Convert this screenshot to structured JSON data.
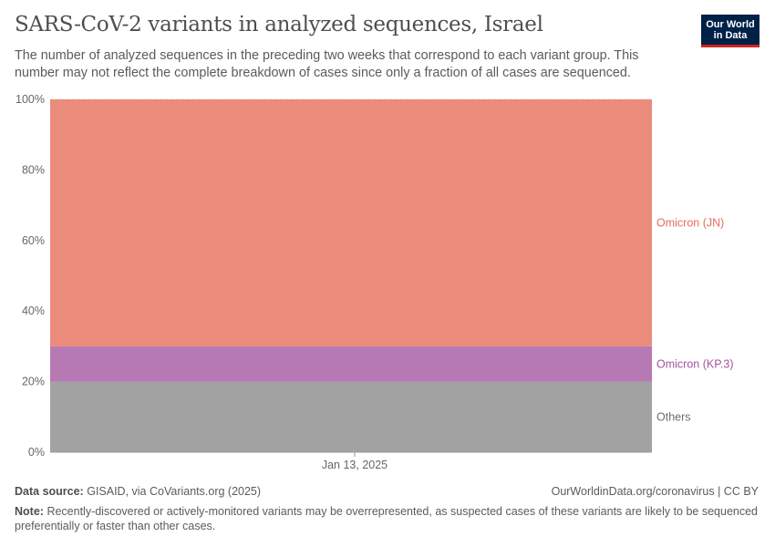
{
  "header": {
    "title": "SARS-CoV-2 variants in analyzed sequences, Israel",
    "subtitle": "The number of analyzed sequences in the preceding two weeks that correspond to each variant group. This number may not reflect the complete breakdown of cases since only a fraction of all cases are sequenced."
  },
  "logo": {
    "line1": "Our World",
    "line2": "in Data"
  },
  "chart_data": {
    "type": "area",
    "stacked": true,
    "x": [
      "Jan 13, 2025"
    ],
    "yticks": [
      "0%",
      "20%",
      "40%",
      "60%",
      "80%",
      "100%"
    ],
    "ylim": [
      0,
      100
    ],
    "grid": true,
    "legend": "right-inline",
    "series": [
      {
        "name": "Others",
        "values": [
          20
        ],
        "color": "#a2a2a2",
        "label_color": "#6e6e6e"
      },
      {
        "name": "Omicron (KP.3)",
        "values": [
          10
        ],
        "color": "#b679b3",
        "label_color": "#a2559c"
      },
      {
        "name": "Omicron (JN)",
        "values": [
          70
        ],
        "color": "#eb8b7b",
        "label_color": "#e56e5a"
      }
    ]
  },
  "footer": {
    "source_label": "Data source:",
    "source_text": "GISAID, via CoVariants.org (2025)",
    "url_text": "OurWorldinData.org/coronavirus | CC BY",
    "note_label": "Note:",
    "note_text": "Recently-discovered or actively-monitored variants may be overrepresented, as suspected cases of these variants are likely to be sequenced preferentially or faster than other cases."
  }
}
